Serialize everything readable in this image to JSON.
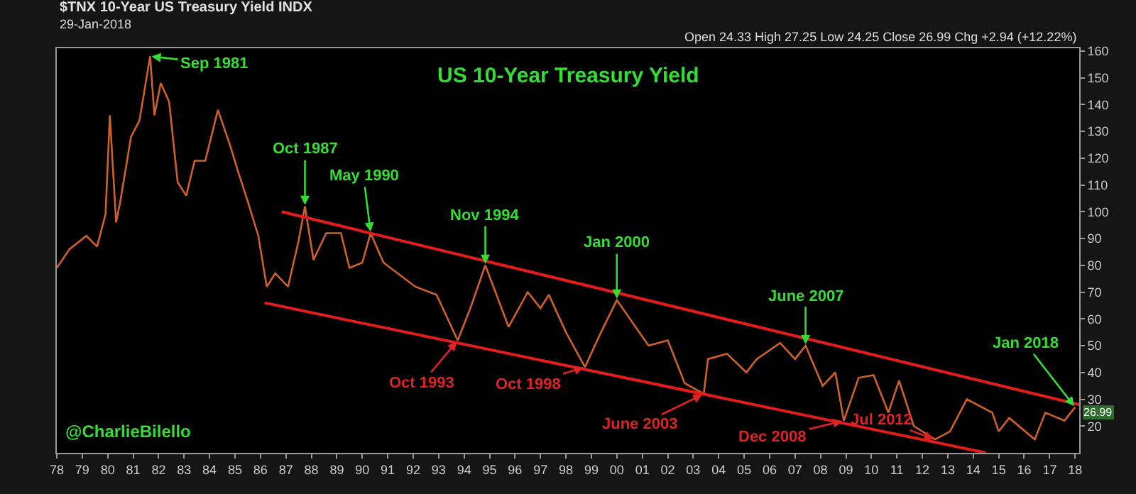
{
  "chart_data": {
    "type": "line",
    "title": "US 10-Year Treasury Yield",
    "subtitle": "$TNX 10-Year US Treasury Yield INDX",
    "x": [
      "1978-01",
      "1978-07",
      "1979-03",
      "1979-08",
      "1979-12",
      "1980-02",
      "1980-05",
      "1980-07",
      "1980-12",
      "1981-04",
      "1981-09",
      "1981-11",
      "1982-02",
      "1982-06",
      "1982-10",
      "1983-02",
      "1983-06",
      "1983-11",
      "1984-05",
      "1984-11",
      "1985-02",
      "1985-07",
      "1985-12",
      "1986-04",
      "1986-08",
      "1987-02",
      "1987-07",
      "1987-10",
      "1988-02",
      "1988-08",
      "1989-03",
      "1989-07",
      "1990-01",
      "1990-05",
      "1990-11",
      "1992-02",
      "1992-12",
      "1993-10",
      "1994-04",
      "1994-11",
      "1995-10",
      "1996-07",
      "1997-01",
      "1997-05",
      "1998-01",
      "1998-10",
      "1999-05",
      "2000-01",
      "2001-04",
      "2002-01",
      "2002-09",
      "2003-06",
      "2003-08",
      "2004-05",
      "2005-02",
      "2005-07",
      "2006-06",
      "2007-01",
      "2007-06",
      "2008-02",
      "2008-08",
      "2008-12",
      "2009-07",
      "2010-02",
      "2010-09",
      "2011-02",
      "2011-09",
      "2012-07",
      "2013-02",
      "2013-10",
      "2014-10",
      "2015-01",
      "2015-06",
      "2016-06",
      "2016-11",
      "2017-08",
      "2018-01"
    ],
    "series": [
      {
        "color": "#d0602a",
        "values": [
          79,
          86,
          91,
          87,
          99,
          136,
          96,
          104,
          128,
          134,
          158,
          136,
          148,
          141,
          111,
          106,
          119,
          119,
          138,
          124,
          116,
          104,
          91,
          72,
          77,
          72,
          89,
          102,
          82,
          92,
          92,
          79,
          81,
          92,
          81,
          72,
          69,
          52,
          64,
          80,
          57,
          70,
          64,
          69,
          55,
          42,
          54,
          67,
          50,
          52,
          36,
          32,
          45,
          47,
          40,
          45,
          51,
          45,
          50,
          35,
          40,
          22,
          38,
          39,
          25,
          37,
          20,
          15,
          18,
          30,
          25,
          18,
          23,
          15,
          25,
          22,
          26.99
        ]
      },
      {
        "color": "#e51c1c",
        "x": [
          "1986-11",
          "2018-03"
        ],
        "values": [
          100,
          28
        ]
      },
      {
        "color": "#e51c1c",
        "x": [
          "1986-03",
          "2014-07"
        ],
        "values": [
          66,
          10
        ]
      }
    ],
    "xlim": [
      "1978-01",
      "2018-03"
    ],
    "xticks": [
      {
        "value": "1978-01",
        "label": "78"
      },
      {
        "value": "1979-01",
        "label": "79"
      },
      {
        "value": "1980-01",
        "label": "80"
      },
      {
        "value": "1981-01",
        "label": "81"
      },
      {
        "value": "1982-01",
        "label": "82"
      },
      {
        "value": "1983-01",
        "label": "83"
      },
      {
        "value": "1984-01",
        "label": "84"
      },
      {
        "value": "1985-01",
        "label": "85"
      },
      {
        "value": "1986-01",
        "label": "86"
      },
      {
        "value": "1987-01",
        "label": "87"
      },
      {
        "value": "1988-01",
        "label": "88"
      },
      {
        "value": "1989-01",
        "label": "89"
      },
      {
        "value": "1990-01",
        "label": "90"
      },
      {
        "value": "1991-01",
        "label": "91"
      },
      {
        "value": "1992-01",
        "label": "92"
      },
      {
        "value": "1993-01",
        "label": "93"
      },
      {
        "value": "1994-01",
        "label": "94"
      },
      {
        "value": "1995-01",
        "label": "95"
      },
      {
        "value": "1996-01",
        "label": "96"
      },
      {
        "value": "1997-01",
        "label": "97"
      },
      {
        "value": "1998-01",
        "label": "98"
      },
      {
        "value": "1999-01",
        "label": "99"
      },
      {
        "value": "2000-01",
        "label": "00"
      },
      {
        "value": "2001-01",
        "label": "01"
      },
      {
        "value": "2002-01",
        "label": "02"
      },
      {
        "value": "2003-01",
        "label": "03"
      },
      {
        "value": "2004-01",
        "label": "04"
      },
      {
        "value": "2005-01",
        "label": "05"
      },
      {
        "value": "2006-01",
        "label": "06"
      },
      {
        "value": "2007-01",
        "label": "07"
      },
      {
        "value": "2008-01",
        "label": "08"
      },
      {
        "value": "2009-01",
        "label": "09"
      },
      {
        "value": "2010-01",
        "label": "10"
      },
      {
        "value": "2011-01",
        "label": "11"
      },
      {
        "value": "2012-01",
        "label": "12"
      },
      {
        "value": "2013-01",
        "label": "13"
      },
      {
        "value": "2014-01",
        "label": "14"
      },
      {
        "value": "2015-01",
        "label": "15"
      },
      {
        "value": "2016-01",
        "label": "16"
      },
      {
        "value": "2017-01",
        "label": "17"
      },
      {
        "value": "2018-01",
        "label": "18"
      }
    ],
    "ylim": [
      10,
      161
    ],
    "yticks": [
      20,
      30,
      40,
      50,
      60,
      70,
      80,
      90,
      100,
      110,
      120,
      130,
      140,
      150,
      160
    ],
    "grid": false,
    "annotations": [
      "29-Jan-2018",
      "Open 24.33 High 27.25 Low 24.25 Close 26.99 Chg +2.94 (+12.22%)",
      "@CharlieBilello",
      {
        "text": "Sep 1981",
        "x": "1981-09",
        "y": 158
      },
      {
        "text": "Oct 1987",
        "x": "1987-10",
        "y": 102
      },
      {
        "text": "May 1990",
        "x": "1990-05",
        "y": 92
      },
      {
        "text": "Nov 1994",
        "x": "1994-11",
        "y": 80
      },
      {
        "text": "Jan 2000",
        "x": "2000-01",
        "y": 67
      },
      {
        "text": "June 2007",
        "x": "2007-06",
        "y": 50
      },
      {
        "text": "Jan 2018",
        "x": "2018-01",
        "y": 27
      },
      {
        "text": "Oct 1993",
        "x": "1993-10",
        "y": 52
      },
      {
        "text": "Oct 1998",
        "x": "1998-10",
        "y": 42
      },
      {
        "text": "June 2003",
        "x": "2003-06",
        "y": 32
      },
      {
        "text": "Dec 2008",
        "x": "2008-12",
        "y": 22
      },
      {
        "text": "Jul 2012",
        "x": "2012-07",
        "y": 15
      },
      {
        "text": "26.99",
        "x": "2018-01",
        "y": 26.99
      }
    ]
  }
}
